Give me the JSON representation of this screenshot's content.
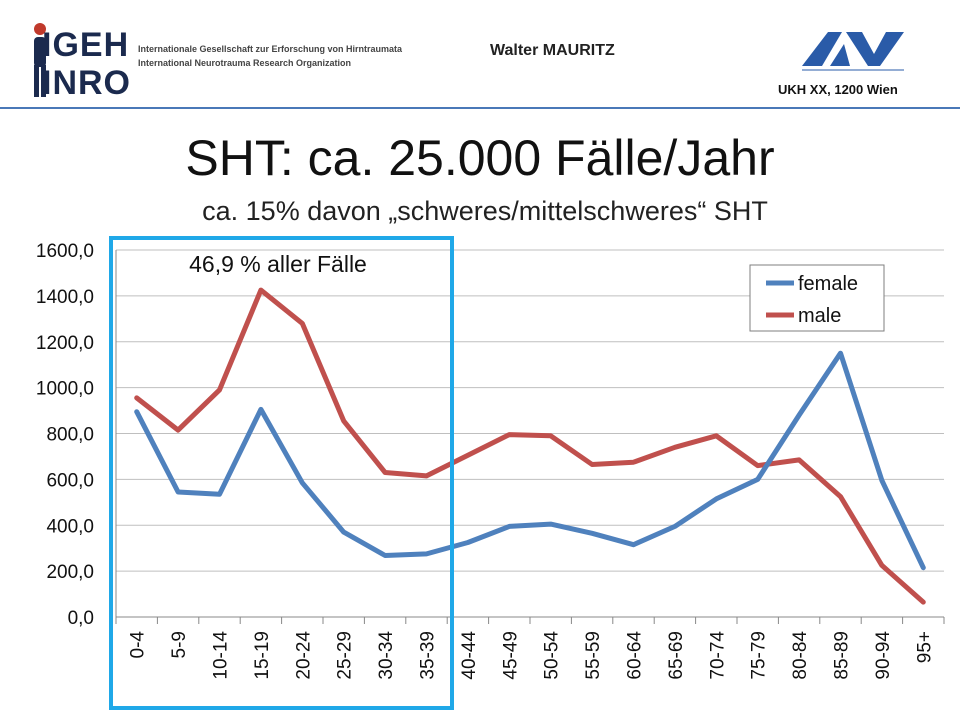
{
  "header": {
    "logo_name": "IGEH INRO",
    "logo_line1": "IGEH",
    "logo_line2": "INRO",
    "org_de": "Internationale Gesellschaft zur Erforschung von Hirntraumata",
    "org_en": "International Neurotrauma Research Organization",
    "author": "Walter MAURITZ",
    "partner_logo_text": "AUVA",
    "address": "UKH XX, 1200 Wien"
  },
  "slide": {
    "title": "SHT: ca. 25.000 Fälle/Jahr",
    "subtitle": "ca. 15% davon „schweres/mittelschweres“ SHT"
  },
  "colors": {
    "female": "#4f81bd",
    "male": "#c0504d",
    "highlight_box": "#1fa8e8",
    "grid": "#bfbfbf",
    "header_rule": "#4a78b8"
  },
  "chart_data": {
    "type": "line",
    "categories": [
      "0-4",
      "5-9",
      "10-14",
      "15-19",
      "20-24",
      "25-29",
      "30-34",
      "35-39",
      "40-44",
      "45-49",
      "50-54",
      "55-59",
      "60-64",
      "65-69",
      "70-74",
      "75-79",
      "80-84",
      "85-89",
      "90-94",
      "95+"
    ],
    "series": [
      {
        "name": "female",
        "values": [
          895,
          545,
          535,
          905,
          585,
          370,
          268,
          275,
          325,
          395,
          405,
          365,
          315,
          395,
          515,
          600,
          880,
          1150,
          595,
          215
        ]
      },
      {
        "name": "male",
        "values": [
          955,
          815,
          990,
          1425,
          1280,
          855,
          630,
          615,
          705,
          795,
          790,
          665,
          675,
          740,
          790,
          660,
          685,
          525,
          225,
          65
        ]
      }
    ],
    "y_tick_labels": [
      "0,0",
      "200,0",
      "400,0",
      "600,0",
      "800,0",
      "1000,0",
      "1200,0",
      "1400,0",
      "1600,0"
    ],
    "ylim": [
      0,
      1600
    ],
    "grid": true,
    "legend_position": "top-right",
    "highlight": {
      "label": "46,9 % aller Fälle",
      "from_category": "0-4",
      "to_category": "35-39"
    }
  }
}
